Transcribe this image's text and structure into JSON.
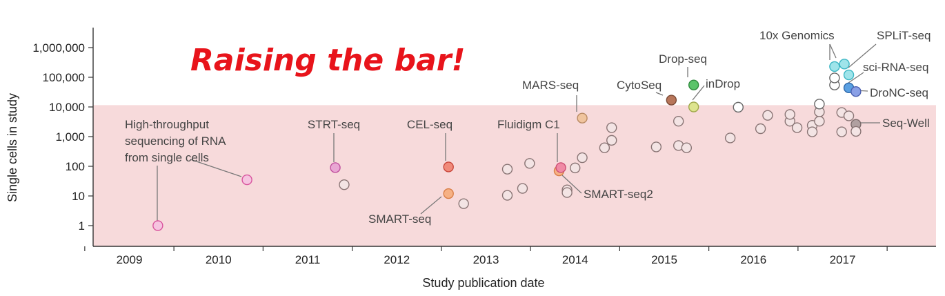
{
  "slogan": "Raising the bar!",
  "chart_data": {
    "type": "scatter",
    "title": "",
    "xlabel": "Study publication date",
    "ylabel": "Single cells in study",
    "xlim": [
      2008.6,
      2018.0
    ],
    "ylim": [
      0.25,
      5000000
    ],
    "yscale": "log",
    "x_ticks": [
      "2009",
      "2010",
      "2011",
      "2012",
      "2013",
      "2014",
      "2015",
      "2016",
      "2017"
    ],
    "y_ticks": [
      {
        "value": 1,
        "label": "1"
      },
      {
        "value": 10,
        "label": "10"
      },
      {
        "value": 100,
        "label": "100"
      },
      {
        "value": 1000,
        "label": "1,000"
      },
      {
        "value": 10000,
        "label": "10,000"
      },
      {
        "value": 100000,
        "label": "100,000"
      },
      {
        "value": 1000000,
        "label": "1,000,000"
      }
    ],
    "shaded_band": {
      "from": 0.25,
      "to": 11500,
      "color": "#f7dadb"
    },
    "grid": false,
    "points": [
      {
        "x": 2009.32,
        "y": 1,
        "color": "#f6c4e0",
        "stroke": "#d9559e"
      },
      {
        "x": 2010.32,
        "y": 35,
        "color": "#f6c4e0",
        "stroke": "#d9559e"
      },
      {
        "x": 2011.31,
        "y": 90,
        "color": "#e9a6d3",
        "stroke": "#c0509e"
      },
      {
        "x": 2011.41,
        "y": 24,
        "color": "#f3e4e4",
        "stroke": "#8a7575"
      },
      {
        "x": 2012.58,
        "y": 95,
        "color": "#f08a7a",
        "stroke": "#c8453a"
      },
      {
        "x": 2012.58,
        "y": 12,
        "color": "#f6b185",
        "stroke": "#d97e46"
      },
      {
        "x": 2012.75,
        "y": 5.5,
        "color": "#f3e4e4",
        "stroke": "#8a7575"
      },
      {
        "x": 2013.24,
        "y": 80,
        "color": "#f3e4e4",
        "stroke": "#8a7575"
      },
      {
        "x": 2013.24,
        "y": 10.5,
        "color": "#f3e4e4",
        "stroke": "#8a7575"
      },
      {
        "x": 2013.41,
        "y": 18,
        "color": "#f3e4e4",
        "stroke": "#8a7575"
      },
      {
        "x": 2013.49,
        "y": 125,
        "color": "#f3e4e4",
        "stroke": "#8a7575"
      },
      {
        "x": 2013.82,
        "y": 70,
        "color": "#f6b185",
        "stroke": "#d97e46"
      },
      {
        "x": 2013.84,
        "y": 90,
        "color": "#f08aa5",
        "stroke": "#cc4f74"
      },
      {
        "x": 2013.91,
        "y": 16,
        "color": "#f3e4e4",
        "stroke": "#8a7575"
      },
      {
        "x": 2013.91,
        "y": 13,
        "color": "#f3e4e4",
        "stroke": "#8a7575"
      },
      {
        "x": 2014.0,
        "y": 88,
        "color": "#f3e4e4",
        "stroke": "#8a7575"
      },
      {
        "x": 2014.08,
        "y": 195,
        "color": "#f3e4e4",
        "stroke": "#8a7575"
      },
      {
        "x": 2014.08,
        "y": 4200,
        "color": "#f0c49e",
        "stroke": "#b98a63"
      },
      {
        "x": 2014.33,
        "y": 420,
        "color": "#f3e4e4",
        "stroke": "#8a7575"
      },
      {
        "x": 2014.41,
        "y": 750,
        "color": "#f3e4e4",
        "stroke": "#8a7575"
      },
      {
        "x": 2014.41,
        "y": 2000,
        "color": "#f3e4e4",
        "stroke": "#8a7575"
      },
      {
        "x": 2014.91,
        "y": 450,
        "color": "#f3e4e4",
        "stroke": "#8a7575"
      },
      {
        "x": 2015.08,
        "y": 17000,
        "color": "#b8765a",
        "stroke": "#7a4a36"
      },
      {
        "x": 2015.16,
        "y": 3300,
        "color": "#f3e4e4",
        "stroke": "#8a7575"
      },
      {
        "x": 2015.16,
        "y": 500,
        "color": "#f3e4e4",
        "stroke": "#8a7575"
      },
      {
        "x": 2015.25,
        "y": 420,
        "color": "#f3e4e4",
        "stroke": "#8a7575"
      },
      {
        "x": 2015.33,
        "y": 55000,
        "color": "#5bc46a",
        "stroke": "#2f8a3d"
      },
      {
        "x": 2015.33,
        "y": 10000,
        "color": "#dde48e",
        "stroke": "#9fa84b"
      },
      {
        "x": 2015.74,
        "y": 900,
        "color": "#f3e4e4",
        "stroke": "#8a7575"
      },
      {
        "x": 2015.83,
        "y": 9800,
        "color": "#ffffff",
        "stroke": "#666666"
      },
      {
        "x": 2016.08,
        "y": 1850,
        "color": "#f3e4e4",
        "stroke": "#8a7575"
      },
      {
        "x": 2016.16,
        "y": 5200,
        "color": "#f3e4e4",
        "stroke": "#8a7575"
      },
      {
        "x": 2016.41,
        "y": 3300,
        "color": "#f3e4e4",
        "stroke": "#8a7575"
      },
      {
        "x": 2016.41,
        "y": 5600,
        "color": "#f3e4e4",
        "stroke": "#8a7575"
      },
      {
        "x": 2016.49,
        "y": 2000,
        "color": "#f3e4e4",
        "stroke": "#8a7575"
      },
      {
        "x": 2016.66,
        "y": 2400,
        "color": "#f3e4e4",
        "stroke": "#8a7575"
      },
      {
        "x": 2016.66,
        "y": 1450,
        "color": "#f3e4e4",
        "stroke": "#8a7575"
      },
      {
        "x": 2016.74,
        "y": 6800,
        "color": "#f3e4e4",
        "stroke": "#8a7575"
      },
      {
        "x": 2016.74,
        "y": 3300,
        "color": "#f3e4e4",
        "stroke": "#8a7575"
      },
      {
        "x": 2016.74,
        "y": 12500,
        "color": "#ffffff",
        "stroke": "#666666"
      },
      {
        "x": 2016.91,
        "y": 55000,
        "color": "#ffffff",
        "stroke": "#666666"
      },
      {
        "x": 2016.91,
        "y": 95000,
        "color": "#ffffff",
        "stroke": "#666666"
      },
      {
        "x": 2016.91,
        "y": 230000,
        "color": "#9fe4ea",
        "stroke": "#3bb6c4"
      },
      {
        "x": 2016.99,
        "y": 6500,
        "color": "#f3e4e4",
        "stroke": "#8a7575"
      },
      {
        "x": 2016.99,
        "y": 1450,
        "color": "#f3e4e4",
        "stroke": "#8a7575"
      },
      {
        "x": 2017.02,
        "y": 280000,
        "color": "#9fe4ea",
        "stroke": "#3bb6c4"
      },
      {
        "x": 2017.07,
        "y": 120000,
        "color": "#9fe4ea",
        "stroke": "#3bb6c4"
      },
      {
        "x": 2017.07,
        "y": 5000,
        "color": "#f3e4e4",
        "stroke": "#8a7575"
      },
      {
        "x": 2017.07,
        "y": 44000,
        "color": "#5aa0e2",
        "stroke": "#2d67a8"
      },
      {
        "x": 2017.15,
        "y": 33000,
        "color": "#8aa0e6",
        "stroke": "#4a5fb0"
      },
      {
        "x": 2017.15,
        "y": 2600,
        "color": "#b0a0a0",
        "stroke": "#7a6a6a"
      },
      {
        "x": 2017.15,
        "y": 1500,
        "color": "#f3e4e4",
        "stroke": "#8a7575"
      }
    ],
    "annotations": [
      {
        "lines": [
          "High-throughput",
          "sequencing of RNA",
          "from single cells"
        ],
        "target": [
          [
            2009.32,
            1
          ],
          [
            2010.32,
            35
          ]
        ]
      },
      {
        "lines": [
          "STRT-seq"
        ],
        "target": [
          [
            2011.31,
            90
          ]
        ]
      },
      {
        "lines": [
          "CEL-seq"
        ],
        "target": [
          [
            2012.58,
            95
          ]
        ]
      },
      {
        "lines": [
          "SMART-seq"
        ],
        "target": [
          [
            2012.58,
            12
          ]
        ]
      },
      {
        "lines": [
          "Fluidigm C1"
        ],
        "target": [
          [
            2013.84,
            90
          ]
        ]
      },
      {
        "lines": [
          "SMART-seq2"
        ],
        "target": [
          [
            2013.82,
            70
          ]
        ]
      },
      {
        "lines": [
          "MARS-seq"
        ],
        "target": [
          [
            2014.08,
            4200
          ]
        ]
      },
      {
        "lines": [
          "CytoSeq"
        ],
        "target": [
          [
            2015.08,
            17000
          ]
        ]
      },
      {
        "lines": [
          "Drop-seq"
        ],
        "target": [
          [
            2015.33,
            55000
          ]
        ]
      },
      {
        "lines": [
          "inDrop"
        ],
        "target": [
          [
            2015.33,
            10000
          ]
        ]
      },
      {
        "lines": [
          "10x Genomics"
        ],
        "target": [
          [
            2016.91,
            230000
          ],
          [
            2017.02,
            280000
          ]
        ]
      },
      {
        "lines": [
          "SPLiT-seq"
        ],
        "target": [
          [
            2017.07,
            120000
          ]
        ]
      },
      {
        "lines": [
          "sci-RNA-seq"
        ],
        "target": [
          [
            2017.07,
            44000
          ]
        ]
      },
      {
        "lines": [
          "DroNC-seq"
        ],
        "target": [
          [
            2017.15,
            33000
          ]
        ]
      },
      {
        "lines": [
          "Seq-Well"
        ],
        "target": [
          [
            2017.15,
            2600
          ]
        ]
      }
    ]
  }
}
